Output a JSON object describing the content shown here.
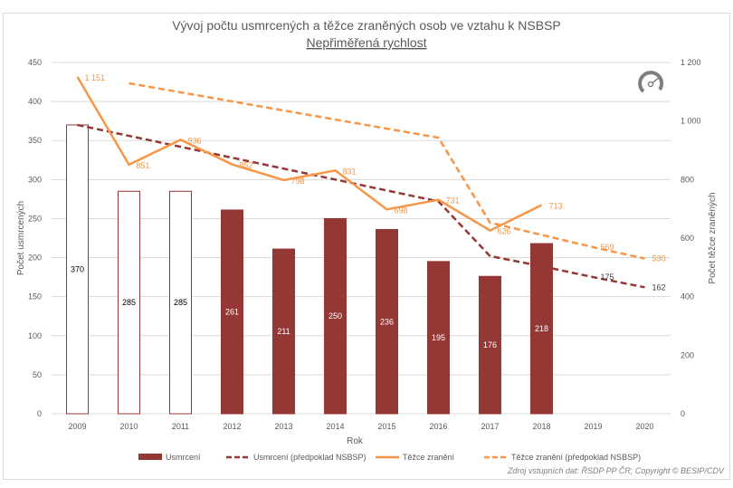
{
  "chart_data": {
    "type": "bar+line",
    "title": "Vývoj počtu usmrcených a těžce zraněných osob ve vztahu k NSBSP",
    "subtitle": "Nepřiměřená rychlost",
    "xlabel": "Rok",
    "ylabel": "Počet usmrcených",
    "y2label": "Počet těžce zraněných",
    "ylim": [
      0,
      450
    ],
    "y2lim": [
      0,
      1200
    ],
    "yticks": [
      0,
      50,
      100,
      150,
      200,
      250,
      300,
      350,
      400,
      450
    ],
    "y2ticks": [
      0,
      200,
      400,
      600,
      800,
      1000,
      1200
    ],
    "y2tick_labels": [
      "0",
      "200",
      "400",
      "600",
      "800",
      "1 000",
      "1 200"
    ],
    "categories": [
      "2009",
      "2010",
      "2011",
      "2012",
      "2013",
      "2014",
      "2015",
      "2016",
      "2017",
      "2018",
      "2019",
      "2020"
    ],
    "grid": true,
    "legend_position": "bottom",
    "series": [
      {
        "name": "Usmrcení",
        "kind": "bar",
        "axis": "left",
        "color": "#953735",
        "outlined_years": [
          "2009",
          "2010",
          "2011"
        ],
        "values": [
          370,
          285,
          285,
          261,
          211,
          250,
          236,
          195,
          176,
          218,
          null,
          null
        ]
      },
      {
        "name": "Usmrcení (předpoklad NSBSP)",
        "kind": "dashed-line",
        "axis": "left",
        "color": "#953735",
        "values": [
          370,
          356,
          342,
          328,
          314,
          300,
          286,
          272,
          202,
          189,
          175,
          162
        ],
        "labels": [
          null,
          null,
          null,
          null,
          null,
          null,
          null,
          null,
          null,
          null,
          "175",
          "162"
        ]
      },
      {
        "name": "Těžce zranění",
        "kind": "line",
        "axis": "right",
        "color": "#f79646",
        "values": [
          1151,
          851,
          936,
          852,
          798,
          831,
          698,
          731,
          626,
          713,
          null,
          null
        ],
        "labels": [
          "1 151",
          "851",
          "936",
          "852",
          "798",
          "831",
          "698",
          "731",
          "626",
          "713",
          null,
          null
        ]
      },
      {
        "name": "Těžce zranění (předpoklad NSBSP)",
        "kind": "dashed-line",
        "axis": "right",
        "color": "#f79646",
        "values": [
          null,
          1129,
          1098,
          1067,
          1036,
          1005,
          974,
          943,
          653,
          611,
          569,
          530
        ],
        "labels": [
          null,
          null,
          null,
          null,
          null,
          null,
          null,
          null,
          null,
          null,
          "569",
          "530"
        ]
      }
    ],
    "source": "Zdroj vstupních dat: ŘSDP PP ČR; Copyright © BESIP/CDV",
    "icon": "speedometer-icon"
  }
}
